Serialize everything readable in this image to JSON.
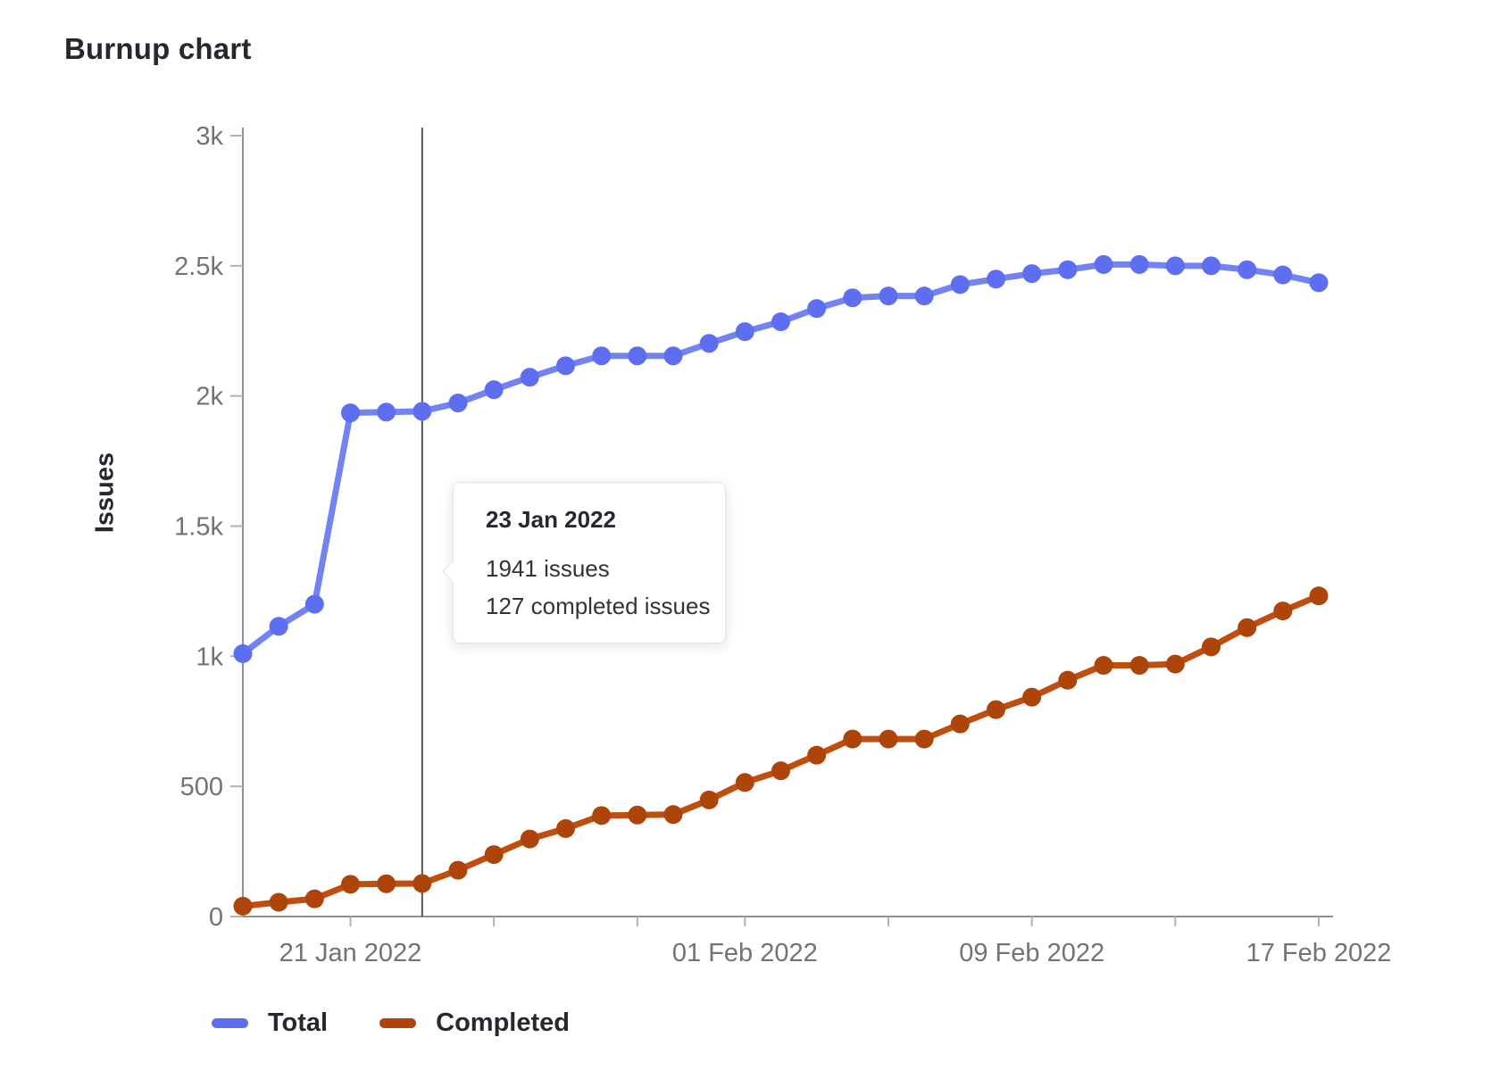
{
  "title": "Burnup chart",
  "chart_data": {
    "type": "line",
    "title": "Burnup chart",
    "xlabel": "",
    "ylabel": "Issues",
    "ylim": [
      0,
      3000
    ],
    "grid": false,
    "legend_position": "bottom-left",
    "x": [
      "18 Jan 2022",
      "19 Jan 2022",
      "20 Jan 2022",
      "21 Jan 2022",
      "22 Jan 2022",
      "23 Jan 2022",
      "24 Jan 2022",
      "25 Jan 2022",
      "26 Jan 2022",
      "27 Jan 2022",
      "28 Jan 2022",
      "29 Jan 2022",
      "30 Jan 2022",
      "31 Jan 2022",
      "01 Feb 2022",
      "02 Feb 2022",
      "03 Feb 2022",
      "04 Feb 2022",
      "05 Feb 2022",
      "06 Feb 2022",
      "07 Feb 2022",
      "08 Feb 2022",
      "09 Feb 2022",
      "10 Feb 2022",
      "11 Feb 2022",
      "12 Feb 2022",
      "13 Feb 2022",
      "14 Feb 2022",
      "15 Feb 2022",
      "16 Feb 2022",
      "17 Feb 2022"
    ],
    "series": [
      {
        "name": "Total",
        "color": "#5e6ef0",
        "line_color": "#7383f2",
        "values": [
          1010,
          1115,
          1200,
          1935,
          1938,
          1941,
          1973,
          2024,
          2072,
          2116,
          2154,
          2154,
          2154,
          2202,
          2247,
          2285,
          2336,
          2377,
          2384,
          2384,
          2428,
          2449,
          2470,
          2485,
          2505,
          2505,
          2500,
          2500,
          2485,
          2465,
          2435
        ]
      },
      {
        "name": "Completed",
        "color": "#ad450a",
        "line_color": "#bf4e0f",
        "values": [
          40,
          55,
          68,
          124,
          126,
          127,
          178,
          238,
          298,
          338,
          388,
          390,
          392,
          448,
          515,
          560,
          620,
          682,
          682,
          682,
          740,
          795,
          843,
          908,
          965,
          965,
          970,
          1036,
          1110,
          1174,
          1232
        ]
      }
    ],
    "yticks": [
      {
        "value": 0,
        "label": "0"
      },
      {
        "value": 500,
        "label": "500"
      },
      {
        "value": 1000,
        "label": "1k"
      },
      {
        "value": 1500,
        "label": "1.5k"
      },
      {
        "value": 2000,
        "label": "2k"
      },
      {
        "value": 2500,
        "label": "2.5k"
      },
      {
        "value": 3000,
        "label": "3k"
      }
    ],
    "xticks": [
      {
        "index": 3,
        "label": "21 Jan 2022"
      },
      {
        "index": 7,
        "label": ""
      },
      {
        "index": 11,
        "label": ""
      },
      {
        "index": 14,
        "label": "01 Feb 2022"
      },
      {
        "index": 18,
        "label": ""
      },
      {
        "index": 22,
        "label": "09 Feb 2022"
      },
      {
        "index": 26,
        "label": ""
      },
      {
        "index": 30,
        "label": "17 Feb 2022"
      }
    ],
    "marker_index": 5
  },
  "tooltip": {
    "date": "23 Jan 2022",
    "total": "1941 issues",
    "completed": "127 completed issues"
  },
  "legend": [
    {
      "label": "Total",
      "color": "#5e6ef0"
    },
    {
      "label": "Completed",
      "color": "#ad450a"
    }
  ]
}
